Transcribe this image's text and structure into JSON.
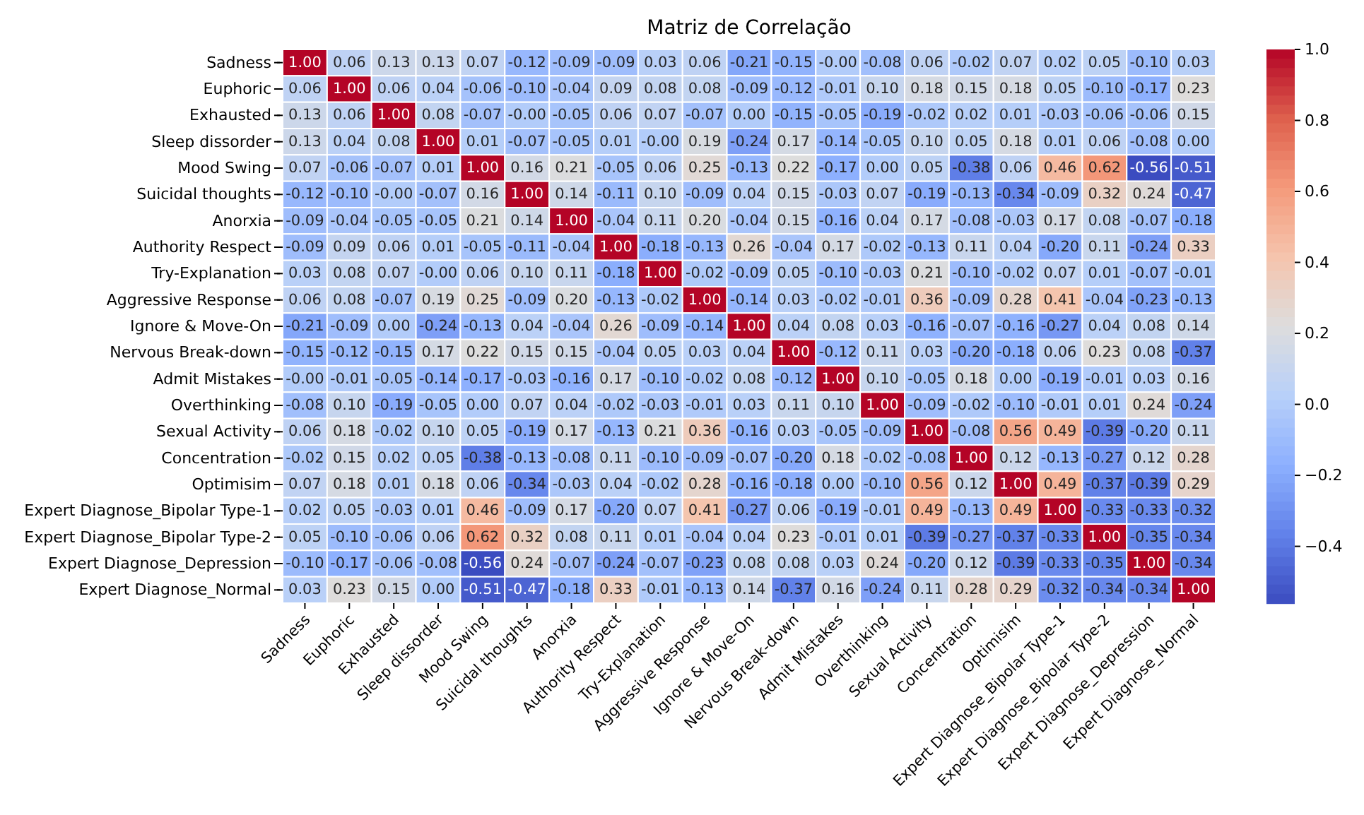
{
  "chart_data": {
    "type": "heatmap",
    "title": "Matriz de Correlação",
    "categories": [
      "Sadness",
      "Euphoric",
      "Exhausted",
      "Sleep dissorder",
      "Mood Swing",
      "Suicidal thoughts",
      "Anorxia",
      "Authority Respect",
      "Try-Explanation",
      "Aggressive Response",
      "Ignore & Move-On",
      "Nervous Break-down",
      "Admit Mistakes",
      "Overthinking",
      "Sexual Activity",
      "Concentration",
      "Optimisim",
      "Expert Diagnose_Bipolar Type-1",
      "Expert Diagnose_Bipolar Type-2",
      "Expert Diagnose_Depression",
      "Expert Diagnose_Normal"
    ],
    "y_categories": [
      "Sadness",
      "Euphoric",
      "Exhausted",
      "Sleep dissorder",
      "Mood Swing",
      "Suicidal thoughts",
      "Anorxia",
      "Authority Respect",
      "Try-Explanation",
      "Aggressive Response",
      "Ignore & Move-On",
      "Nervous Break-down",
      "Admit Mistakes",
      "Overthinking",
      "Sexual Activity",
      "Concentration",
      "Optimisim",
      "Expert Diagnose_Bipolar Type-1",
      "Expert Diagnose_Bipolar Type-2",
      "Expert Diagnose_Depression",
      "Expert Diagnose_Normal"
    ],
    "cells": [
      [
        1.0,
        0.06,
        0.13,
        0.13,
        0.07,
        -0.12,
        -0.09,
        -0.09,
        0.03,
        0.06,
        -0.21,
        -0.15,
        -0.0,
        -0.08,
        0.06,
        -0.02,
        0.07,
        0.02,
        0.05,
        -0.1,
        0.03
      ],
      [
        0.06,
        1.0,
        0.06,
        0.04,
        -0.06,
        -0.1,
        -0.04,
        0.09,
        0.08,
        0.08,
        -0.09,
        -0.12,
        -0.01,
        0.1,
        0.18,
        0.15,
        0.18,
        0.05,
        -0.1,
        -0.17,
        0.23
      ],
      [
        0.13,
        0.06,
        1.0,
        0.08,
        -0.07,
        -0.0,
        -0.05,
        0.06,
        0.07,
        -0.07,
        0.0,
        -0.15,
        -0.05,
        -0.19,
        -0.02,
        0.02,
        0.01,
        -0.03,
        -0.06,
        -0.06,
        0.15
      ],
      [
        0.13,
        0.04,
        0.08,
        1.0,
        0.01,
        -0.07,
        -0.05,
        0.01,
        -0.0,
        0.19,
        -0.24,
        0.17,
        -0.14,
        -0.05,
        0.1,
        0.05,
        0.18,
        0.01,
        0.06,
        -0.08,
        0.0
      ],
      [
        0.07,
        -0.06,
        -0.07,
        0.01,
        1.0,
        0.16,
        0.21,
        -0.05,
        0.06,
        0.25,
        -0.13,
        0.22,
        -0.17,
        0.0,
        0.05,
        -0.38,
        0.06,
        0.46,
        0.62,
        -0.56,
        -0.51
      ],
      [
        -0.12,
        -0.1,
        -0.0,
        -0.07,
        0.16,
        1.0,
        0.14,
        -0.11,
        0.1,
        -0.09,
        0.04,
        0.15,
        -0.03,
        0.07,
        -0.19,
        -0.13,
        -0.34,
        -0.09,
        0.32,
        0.24,
        -0.47
      ],
      [
        -0.09,
        -0.04,
        -0.05,
        -0.05,
        0.21,
        0.14,
        1.0,
        -0.04,
        0.11,
        0.2,
        -0.04,
        0.15,
        -0.16,
        0.04,
        0.17,
        -0.08,
        -0.03,
        0.17,
        0.08,
        -0.07,
        -0.18
      ],
      [
        -0.09,
        0.09,
        0.06,
        0.01,
        -0.05,
        -0.11,
        -0.04,
        1.0,
        -0.18,
        -0.13,
        0.26,
        -0.04,
        0.17,
        -0.02,
        -0.13,
        0.11,
        0.04,
        -0.2,
        0.11,
        -0.24,
        0.33
      ],
      [
        0.03,
        0.08,
        0.07,
        -0.0,
        0.06,
        0.1,
        0.11,
        -0.18,
        1.0,
        -0.02,
        -0.09,
        0.05,
        -0.1,
        -0.03,
        0.21,
        -0.1,
        -0.02,
        0.07,
        0.01,
        -0.07,
        -0.01
      ],
      [
        0.06,
        0.08,
        -0.07,
        0.19,
        0.25,
        -0.09,
        0.2,
        -0.13,
        -0.02,
        1.0,
        -0.14,
        0.03,
        -0.02,
        -0.01,
        0.36,
        -0.09,
        0.28,
        0.41,
        -0.04,
        -0.23,
        -0.13
      ],
      [
        -0.21,
        -0.09,
        0.0,
        -0.24,
        -0.13,
        0.04,
        -0.04,
        0.26,
        -0.09,
        -0.14,
        1.0,
        0.04,
        0.08,
        0.03,
        -0.16,
        -0.07,
        -0.16,
        -0.27,
        0.04,
        0.08,
        0.14
      ],
      [
        -0.15,
        -0.12,
        -0.15,
        0.17,
        0.22,
        0.15,
        0.15,
        -0.04,
        0.05,
        0.03,
        0.04,
        1.0,
        -0.12,
        0.11,
        0.03,
        -0.2,
        -0.18,
        0.06,
        0.23,
        0.08,
        -0.37
      ],
      [
        -0.0,
        -0.01,
        -0.05,
        -0.14,
        -0.17,
        -0.03,
        -0.16,
        0.17,
        -0.1,
        -0.02,
        0.08,
        -0.12,
        1.0,
        0.1,
        -0.05,
        0.18,
        0.0,
        -0.19,
        -0.01,
        0.03,
        0.16
      ],
      [
        -0.08,
        0.1,
        -0.19,
        -0.05,
        0.0,
        0.07,
        0.04,
        -0.02,
        -0.03,
        -0.01,
        0.03,
        0.11,
        0.1,
        1.0,
        -0.09,
        -0.02,
        -0.1,
        -0.01,
        0.01,
        0.24,
        -0.24
      ],
      [
        0.06,
        0.18,
        -0.02,
        0.1,
        0.05,
        -0.19,
        0.17,
        -0.13,
        0.21,
        0.36,
        -0.16,
        0.03,
        -0.05,
        -0.09,
        1.0,
        -0.08,
        0.56,
        0.49,
        -0.39,
        -0.2,
        0.11
      ],
      [
        -0.02,
        0.15,
        0.02,
        0.05,
        -0.38,
        -0.13,
        -0.08,
        0.11,
        -0.1,
        -0.09,
        -0.07,
        -0.2,
        0.18,
        -0.02,
        -0.08,
        1.0,
        0.12,
        -0.13,
        -0.27,
        0.12,
        0.28
      ],
      [
        0.07,
        0.18,
        0.01,
        0.18,
        0.06,
        -0.34,
        -0.03,
        0.04,
        -0.02,
        0.28,
        -0.16,
        -0.18,
        0.0,
        -0.1,
        0.56,
        0.12,
        1.0,
        0.49,
        -0.37,
        -0.39,
        0.29
      ],
      [
        0.02,
        0.05,
        -0.03,
        0.01,
        0.46,
        -0.09,
        0.17,
        -0.2,
        0.07,
        0.41,
        -0.27,
        0.06,
        -0.19,
        -0.01,
        0.49,
        -0.13,
        0.49,
        1.0,
        -0.33,
        -0.33,
        -0.32
      ],
      [
        0.05,
        -0.1,
        -0.06,
        0.06,
        0.62,
        0.32,
        0.08,
        0.11,
        0.01,
        -0.04,
        0.04,
        0.23,
        -0.01,
        0.01,
        -0.39,
        -0.27,
        -0.37,
        -0.33,
        1.0,
        -0.35,
        -0.34
      ],
      [
        -0.1,
        -0.17,
        -0.06,
        -0.08,
        -0.56,
        0.24,
        -0.07,
        -0.24,
        -0.07,
        -0.23,
        0.08,
        0.08,
        0.03,
        0.24,
        -0.2,
        0.12,
        -0.39,
        -0.33,
        -0.35,
        1.0,
        -0.34
      ],
      [
        0.03,
        0.23,
        0.15,
        0.0,
        -0.51,
        -0.47,
        -0.18,
        0.33,
        -0.01,
        -0.13,
        0.14,
        -0.37,
        0.16,
        -0.24,
        0.11,
        0.28,
        0.29,
        -0.32,
        -0.34,
        -0.34,
        1.0
      ]
    ],
    "cell_labels": [
      [
        "1.00",
        "0.06",
        "0.13",
        "0.13",
        "0.07",
        "-0.12",
        "-0.09",
        "-0.09",
        "0.03",
        "0.06",
        "-0.21",
        "-0.15",
        "-0.00",
        "-0.08",
        "0.06",
        "-0.02",
        "0.07",
        "0.02",
        "0.05",
        "-0.10",
        "0.03"
      ],
      [
        "0.06",
        "1.00",
        "0.06",
        "0.04",
        "-0.06",
        "-0.10",
        "-0.04",
        "0.09",
        "0.08",
        "0.08",
        "-0.09",
        "-0.12",
        "-0.01",
        "0.10",
        "0.18",
        "0.15",
        "0.18",
        "0.05",
        "-0.10",
        "-0.17",
        "0.23"
      ],
      [
        "0.13",
        "0.06",
        "1.00",
        "0.08",
        "-0.07",
        "-0.00",
        "-0.05",
        "0.06",
        "0.07",
        "-0.07",
        "0.00",
        "-0.15",
        "-0.05",
        "-0.19",
        "-0.02",
        "0.02",
        "0.01",
        "-0.03",
        "-0.06",
        "-0.06",
        "0.15"
      ],
      [
        "0.13",
        "0.04",
        "0.08",
        "1.00",
        "0.01",
        "-0.07",
        "-0.05",
        "0.01",
        "-0.00",
        "0.19",
        "-0.24",
        "0.17",
        "-0.14",
        "-0.05",
        "0.10",
        "0.05",
        "0.18",
        "0.01",
        "0.06",
        "-0.08",
        "0.00"
      ],
      [
        "0.07",
        "-0.06",
        "-0.07",
        "0.01",
        "1.00",
        "0.16",
        "0.21",
        "-0.05",
        "0.06",
        "0.25",
        "-0.13",
        "0.22",
        "-0.17",
        "0.00",
        "0.05",
        "-0.38",
        "0.06",
        "0.46",
        "0.62",
        "-0.56",
        "-0.51"
      ],
      [
        "-0.12",
        "-0.10",
        "-0.00",
        "-0.07",
        "0.16",
        "1.00",
        "0.14",
        "-0.11",
        "0.10",
        "-0.09",
        "0.04",
        "0.15",
        "-0.03",
        "0.07",
        "-0.19",
        "-0.13",
        "-0.34",
        "-0.09",
        "0.32",
        "0.24",
        "-0.47"
      ],
      [
        "-0.09",
        "-0.04",
        "-0.05",
        "-0.05",
        "0.21",
        "0.14",
        "1.00",
        "-0.04",
        "0.11",
        "0.20",
        "-0.04",
        "0.15",
        "-0.16",
        "0.04",
        "0.17",
        "-0.08",
        "-0.03",
        "0.17",
        "0.08",
        "-0.07",
        "-0.18"
      ],
      [
        "-0.09",
        "0.09",
        "0.06",
        "0.01",
        "-0.05",
        "-0.11",
        "-0.04",
        "1.00",
        "-0.18",
        "-0.13",
        "0.26",
        "-0.04",
        "0.17",
        "-0.02",
        "-0.13",
        "0.11",
        "0.04",
        "-0.20",
        "0.11",
        "-0.24",
        "0.33"
      ],
      [
        "0.03",
        "0.08",
        "0.07",
        "-0.00",
        "0.06",
        "0.10",
        "0.11",
        "-0.18",
        "1.00",
        "-0.02",
        "-0.09",
        "0.05",
        "-0.10",
        "-0.03",
        "0.21",
        "-0.10",
        "-0.02",
        "0.07",
        "0.01",
        "-0.07",
        "-0.01"
      ],
      [
        "0.06",
        "0.08",
        "-0.07",
        "0.19",
        "0.25",
        "-0.09",
        "0.20",
        "-0.13",
        "-0.02",
        "1.00",
        "-0.14",
        "0.03",
        "-0.02",
        "-0.01",
        "0.36",
        "-0.09",
        "0.28",
        "0.41",
        "-0.04",
        "-0.23",
        "-0.13"
      ],
      [
        "-0.21",
        "-0.09",
        "0.00",
        "-0.24",
        "-0.13",
        "0.04",
        "-0.04",
        "0.26",
        "-0.09",
        "-0.14",
        "1.00",
        "0.04",
        "0.08",
        "0.03",
        "-0.16",
        "-0.07",
        "-0.16",
        "-0.27",
        "0.04",
        "0.08",
        "0.14"
      ],
      [
        "-0.15",
        "-0.12",
        "-0.15",
        "0.17",
        "0.22",
        "0.15",
        "0.15",
        "-0.04",
        "0.05",
        "0.03",
        "0.04",
        "1.00",
        "-0.12",
        "0.11",
        "0.03",
        "-0.20",
        "-0.18",
        "0.06",
        "0.23",
        "0.08",
        "-0.37"
      ],
      [
        "-0.00",
        "-0.01",
        "-0.05",
        "-0.14",
        "-0.17",
        "-0.03",
        "-0.16",
        "0.17",
        "-0.10",
        "-0.02",
        "0.08",
        "-0.12",
        "1.00",
        "0.10",
        "-0.05",
        "0.18",
        "0.00",
        "-0.19",
        "-0.01",
        "0.03",
        "0.16"
      ],
      [
        "-0.08",
        "0.10",
        "-0.19",
        "-0.05",
        "0.00",
        "0.07",
        "0.04",
        "-0.02",
        "-0.03",
        "-0.01",
        "0.03",
        "0.11",
        "0.10",
        "1.00",
        "-0.09",
        "-0.02",
        "-0.10",
        "-0.01",
        "0.01",
        "0.24",
        "-0.24"
      ],
      [
        "0.06",
        "0.18",
        "-0.02",
        "0.10",
        "0.05",
        "-0.19",
        "0.17",
        "-0.13",
        "0.21",
        "0.36",
        "-0.16",
        "0.03",
        "-0.05",
        "-0.09",
        "1.00",
        "-0.08",
        "0.56",
        "0.49",
        "-0.39",
        "-0.20",
        "0.11"
      ],
      [
        "-0.02",
        "0.15",
        "0.02",
        "0.05",
        "-0.38",
        "-0.13",
        "-0.08",
        "0.11",
        "-0.10",
        "-0.09",
        "-0.07",
        "-0.20",
        "0.18",
        "-0.02",
        "-0.08",
        "1.00",
        "0.12",
        "-0.13",
        "-0.27",
        "0.12",
        "0.28"
      ],
      [
        "0.07",
        "0.18",
        "0.01",
        "0.18",
        "0.06",
        "-0.34",
        "-0.03",
        "0.04",
        "-0.02",
        "0.28",
        "-0.16",
        "-0.18",
        "0.00",
        "-0.10",
        "0.56",
        "0.12",
        "1.00",
        "0.49",
        "-0.37",
        "-0.39",
        "0.29"
      ],
      [
        "0.02",
        "0.05",
        "-0.03",
        "0.01",
        "0.46",
        "-0.09",
        "0.17",
        "-0.20",
        "0.07",
        "0.41",
        "-0.27",
        "0.06",
        "-0.19",
        "-0.01",
        "0.49",
        "-0.13",
        "0.49",
        "1.00",
        "-0.33",
        "-0.33",
        "-0.32"
      ],
      [
        "0.05",
        "-0.10",
        "-0.06",
        "0.06",
        "0.62",
        "0.32",
        "0.08",
        "0.11",
        "0.01",
        "-0.04",
        "0.04",
        "0.23",
        "-0.01",
        "0.01",
        "-0.39",
        "-0.27",
        "-0.37",
        "-0.33",
        "1.00",
        "-0.35",
        "-0.34"
      ],
      [
        "-0.10",
        "-0.17",
        "-0.06",
        "-0.08",
        "-0.56",
        "0.24",
        "-0.07",
        "-0.24",
        "-0.07",
        "-0.23",
        "0.08",
        "0.08",
        "0.03",
        "0.24",
        "-0.20",
        "0.12",
        "-0.39",
        "-0.33",
        "-0.35",
        "1.00",
        "-0.34"
      ],
      [
        "0.03",
        "0.23",
        "0.15",
        "0.00",
        "-0.51",
        "-0.47",
        "-0.18",
        "0.33",
        "-0.01",
        "-0.13",
        "0.14",
        "-0.37",
        "0.16",
        "-0.24",
        "0.11",
        "0.28",
        "0.29",
        "-0.32",
        "-0.34",
        "-0.34",
        "1.00"
      ]
    ],
    "data_labels": true,
    "clim": [
      -0.56,
      1.0
    ],
    "cticks": [
      {
        "value": -0.4,
        "label": "−0.4"
      },
      {
        "value": -0.2,
        "label": "−0.2"
      },
      {
        "value": 0,
        "label": "0.0"
      },
      {
        "value": 0.2,
        "label": "0.2"
      },
      {
        "value": 0.4,
        "label": "0.4"
      },
      {
        "value": 0.6,
        "label": "0.6"
      },
      {
        "value": 0.8,
        "label": "0.8"
      },
      {
        "value": 1.0,
        "label": "1.0"
      }
    ]
  }
}
